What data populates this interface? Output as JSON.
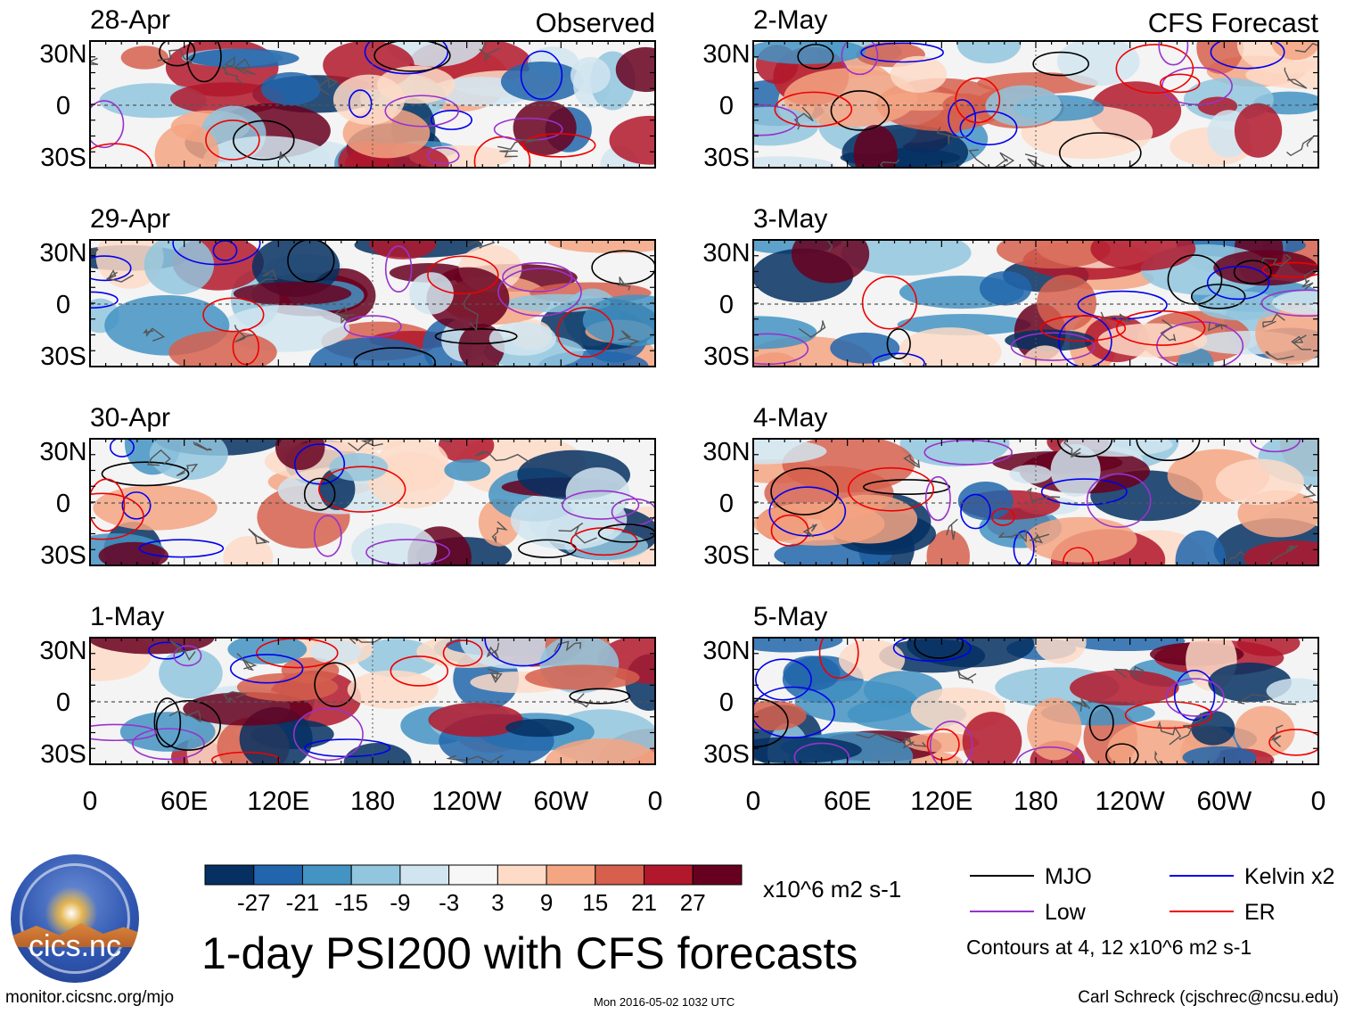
{
  "figure": {
    "title": "1-day PSI200 with CFS forecasts",
    "left_column_label": "Observed",
    "right_column_label": "CFS Forecast",
    "url": "monitor.cicsnc.org/mjo",
    "timestamp": "Mon 2016-05-02 1032 UTC",
    "author": "Carl Schreck (cjschrec@ncsu.edu)",
    "logo_text": "cics.nc"
  },
  "chart_data": {
    "type": "heatmap",
    "title": "1-day PSI200 with CFS forecasts",
    "variable": "PSI200",
    "panels": [
      {
        "date": "28-Apr",
        "kind": "Observed"
      },
      {
        "date": "29-Apr",
        "kind": "Observed"
      },
      {
        "date": "30-Apr",
        "kind": "Observed"
      },
      {
        "date": "1-May",
        "kind": "Observed"
      },
      {
        "date": "2-May",
        "kind": "CFS Forecast"
      },
      {
        "date": "3-May",
        "kind": "CFS Forecast"
      },
      {
        "date": "4-May",
        "kind": "CFS Forecast"
      },
      {
        "date": "5-May",
        "kind": "CFS Forecast"
      }
    ],
    "x_ticks": [
      "0",
      "60E",
      "120E",
      "180",
      "120W",
      "60W",
      "0"
    ],
    "y_ticks": [
      "30N",
      "0",
      "30S"
    ],
    "colorbar": {
      "units": "x10^6 m2 s-1",
      "levels": [
        "-27",
        "-21",
        "-15",
        "-9",
        "-3",
        "3",
        "9",
        "15",
        "21",
        "27"
      ],
      "colors": [
        "#053061",
        "#2166ac",
        "#4393c3",
        "#92c5de",
        "#d1e5f0",
        "#f7f7f7",
        "#fddbc7",
        "#f4a582",
        "#d6604d",
        "#b2182b",
        "#67001f"
      ]
    },
    "contour_legend": [
      {
        "label": "MJO",
        "color": "#000000"
      },
      {
        "label": "Kelvin x2",
        "color": "#0000ee"
      },
      {
        "label": "Low",
        "color": "#9932cc"
      },
      {
        "label": "ER",
        "color": "#ee0000"
      }
    ],
    "contour_note": "Contours at 4, 12 x10^6 m2 s-1"
  }
}
